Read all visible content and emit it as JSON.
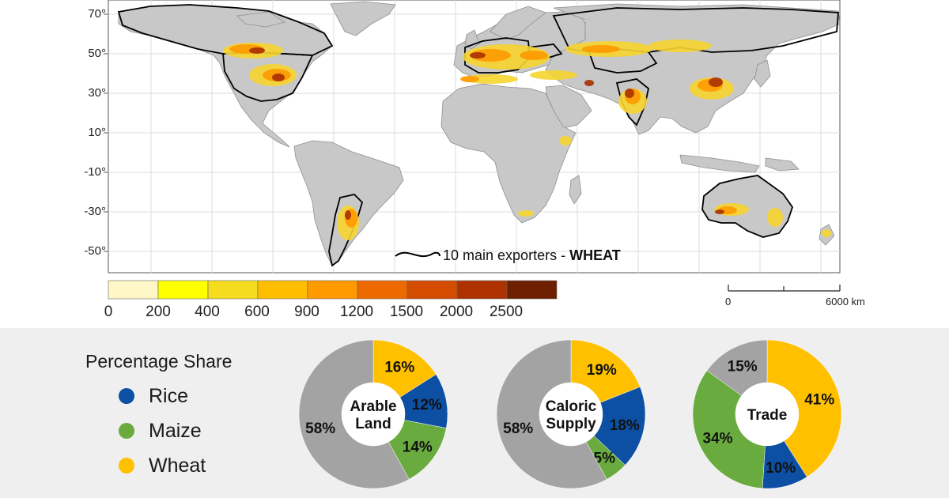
{
  "map": {
    "lat_labels": [
      "70°",
      "50°",
      "30°",
      "10°",
      "-10°",
      "-30°",
      "-50°"
    ],
    "exporter_label_prefix": "10 main exporters - ",
    "exporter_label_crop": "WHEAT",
    "color_scale": {
      "ticks": [
        "0",
        "200",
        "400",
        "600",
        "900",
        "1200",
        "1500",
        "2000",
        "2500"
      ],
      "colors": [
        "#fff7c6",
        "#ffff00",
        "#f6dc1e",
        "#ffbf00",
        "#ff9a00",
        "#ec6a00",
        "#d44c00",
        "#ad3200",
        "#6e1f00"
      ]
    },
    "scale_bar": {
      "start_label": "0",
      "end_label": "6000 km"
    },
    "colors": {
      "land": "#c8c8c8",
      "border": "#8f8f8f",
      "exporter_outline": "#000000",
      "grid": "#dcdcdc"
    }
  },
  "legend": {
    "title": "Percentage Share",
    "items": [
      {
        "label": "Rice",
        "color": "#0c4fa3"
      },
      {
        "label": "Maize",
        "color": "#6aab3f"
      },
      {
        "label": "Wheat",
        "color": "#ffc000"
      }
    ],
    "other_color": "#a3a3a3"
  },
  "chart_data": [
    {
      "type": "pie",
      "title": "Arable Land",
      "center_lines": [
        "Arable",
        "Land"
      ],
      "slices": [
        {
          "name": "Wheat",
          "value": 16,
          "label": "16%"
        },
        {
          "name": "Rice",
          "value": 12,
          "label": "12%"
        },
        {
          "name": "Maize",
          "value": 14,
          "label": "14%"
        },
        {
          "name": "Other",
          "value": 58,
          "label": "58%"
        }
      ]
    },
    {
      "type": "pie",
      "title": "Caloric Supply",
      "center_lines": [
        "Caloric",
        "Supply"
      ],
      "slices": [
        {
          "name": "Wheat",
          "value": 19,
          "label": "19%"
        },
        {
          "name": "Rice",
          "value": 18,
          "label": "18%"
        },
        {
          "name": "Maize",
          "value": 5,
          "label": "5%"
        },
        {
          "name": "Other",
          "value": 58,
          "label": "58%"
        }
      ]
    },
    {
      "type": "pie",
      "title": "Trade",
      "center_lines": [
        "Trade"
      ],
      "slices": [
        {
          "name": "Wheat",
          "value": 41,
          "label": "41%"
        },
        {
          "name": "Rice",
          "value": 10,
          "label": "10%"
        },
        {
          "name": "Maize",
          "value": 34,
          "label": "34%"
        },
        {
          "name": "Other",
          "value": 15,
          "label": "15%"
        }
      ]
    }
  ]
}
